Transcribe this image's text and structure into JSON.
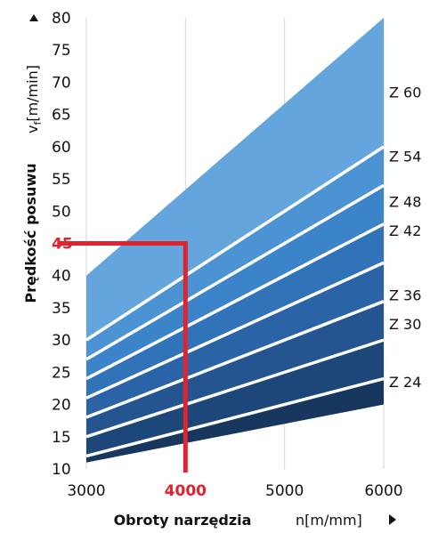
{
  "chart_data": {
    "type": "area",
    "xlabel": "Obroty narzędzia",
    "xunit": "n[m/mm]",
    "ylabel": "Prędkość posuwu",
    "yunit": "vf[m/min]",
    "xlim": [
      3000,
      6000
    ],
    "ylim": [
      10,
      80
    ],
    "x_ticks": [
      3000,
      4000,
      5000,
      6000
    ],
    "y_ticks": [
      10,
      15,
      20,
      25,
      30,
      35,
      40,
      45,
      50,
      55,
      60,
      65,
      70,
      75,
      80
    ],
    "grid": true,
    "series": [
      {
        "name": "Z 24",
        "x": [
          3000,
          6000
        ],
        "y": [
          12,
          24
        ]
      },
      {
        "name": "Z 30",
        "x": [
          3000,
          6000
        ],
        "y": [
          15,
          30
        ]
      },
      {
        "name": "Z 36",
        "x": [
          3000,
          6000
        ],
        "y": [
          18,
          36
        ]
      },
      {
        "name": "Z 42",
        "x": [
          3000,
          6000
        ],
        "y": [
          21,
          42
        ]
      },
      {
        "name": "Z 48",
        "x": [
          3000,
          6000
        ],
        "y": [
          24,
          48
        ]
      },
      {
        "name": "Z 54",
        "x": [
          3000,
          6000
        ],
        "y": [
          27,
          54
        ]
      },
      {
        "name": "Z 60",
        "x": [
          3000,
          6000
        ],
        "y": [
          30,
          60
        ]
      }
    ],
    "band_bottom": {
      "x": [
        3000,
        6000
      ],
      "y": [
        11,
        20
      ]
    },
    "band_top": {
      "x": [
        3000,
        6000
      ],
      "y": [
        40,
        80
      ]
    },
    "label_y": {
      "Z 60": 68.5,
      "Z 54": 58.5,
      "Z 48": 51.5,
      "Z 42": 47,
      "Z 36": 37,
      "Z 30": 32.5,
      "Z 24": 23.5
    },
    "highlight": {
      "x": 4000,
      "y": 45,
      "color": "#e0232f"
    },
    "band_colors": [
      "#17375f",
      "#1d4779",
      "#245590",
      "#2b64a6",
      "#3173b9",
      "#3c84c9",
      "#4c93d4",
      "#64a5dd"
    ]
  }
}
